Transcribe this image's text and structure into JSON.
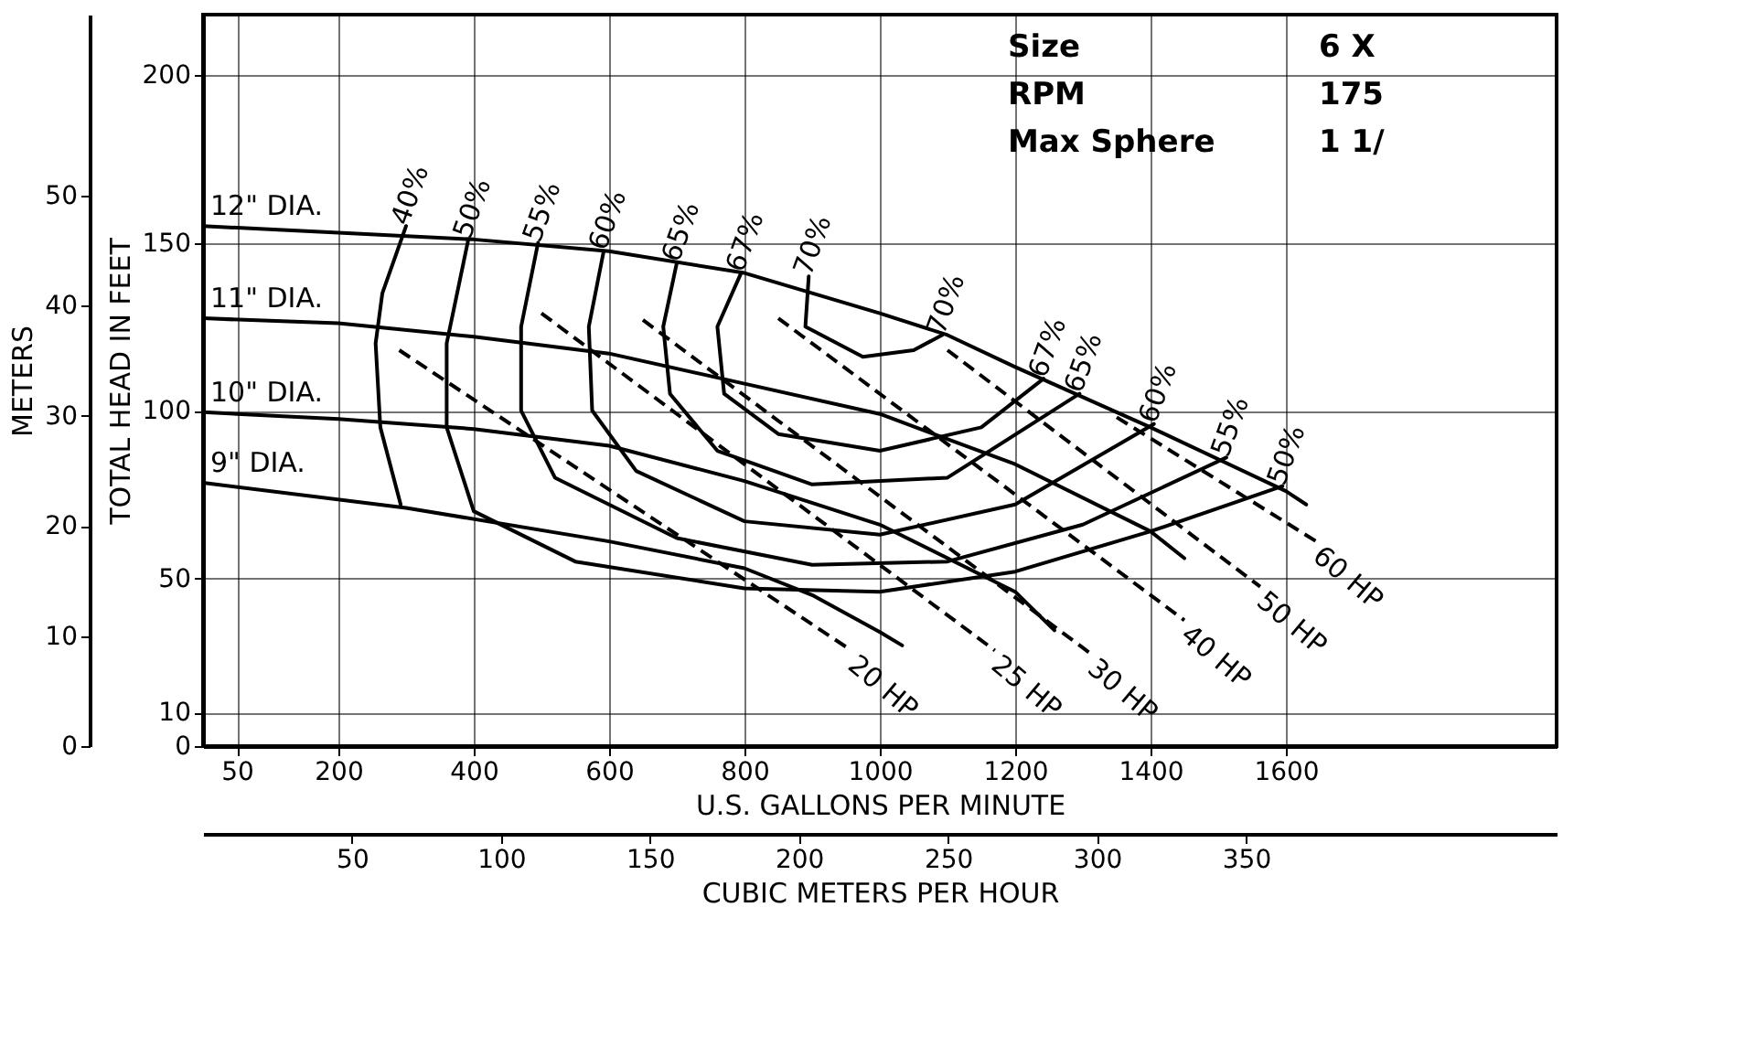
{
  "chart_data": {
    "type": "line",
    "xlabel": "U.S. GALLONS PER MINUTE",
    "ylabel": "TOTAL HEAD IN FEET",
    "y2label": "METERS",
    "x2label": "CUBIC METERS PER HOUR",
    "xlim": [
      0,
      2000
    ],
    "ylim": [
      0,
      218
    ],
    "xticks": [
      50,
      200,
      400,
      600,
      800,
      1000,
      1200,
      1400,
      1600
    ],
    "yticks": [
      0,
      10,
      50,
      100,
      150,
      200
    ],
    "x2lim": [
      0,
      454.2
    ],
    "x2ticks": [
      50,
      100,
      150,
      200,
      250,
      300,
      350
    ],
    "y2lim": [
      0,
      66.45
    ],
    "y2ticks": [
      0,
      10,
      20,
      30,
      40,
      50
    ],
    "grid": true,
    "series": [
      {
        "name": "12\" DIA.",
        "color": "#000000",
        "line_style": "solid",
        "x": [
          0,
          200,
          400,
          600,
          800,
          1000,
          1100,
          1200,
          1400,
          1600,
          1630
        ],
        "values": [
          155,
          153,
          151,
          147.5,
          141,
          129,
          122.5,
          113,
          95,
          76,
          72
        ]
      },
      {
        "name": "11\" DIA.",
        "color": "#000000",
        "line_style": "solid",
        "x": [
          0,
          200,
          400,
          600,
          800,
          1000,
          1200,
          1400,
          1450
        ],
        "values": [
          127.5,
          126,
          122,
          117,
          108,
          99,
          84,
          64,
          56
        ]
      },
      {
        "name": "10\" DIA.",
        "color": "#000000",
        "line_style": "solid",
        "x": [
          0,
          200,
          400,
          600,
          800,
          1000,
          1200,
          1258
        ],
        "values": [
          99.5,
          97.5,
          94.5,
          89.5,
          79,
          66,
          46,
          34.5
        ]
      },
      {
        "name": "9\" DIA.",
        "color": "#000000",
        "line_style": "solid",
        "x": [
          0,
          300,
          600,
          800,
          900,
          1000,
          1033
        ],
        "values": [
          78.5,
          71,
          61,
          53,
          45,
          34,
          30
        ]
      },
      {
        "name": "40%",
        "color": "#000000",
        "line_style": "solid",
        "x": [
          300,
          265,
          255,
          262,
          292
        ],
        "values": [
          155,
          135,
          120,
          95,
          72
        ]
      },
      {
        "name": "50%",
        "color": "#000000",
        "line_style": "solid",
        "x": [
          392,
          360,
          360,
          400,
          550,
          800,
          1000,
          1200,
          1400,
          1595
        ],
        "values": [
          151,
          120,
          95,
          70,
          55,
          47,
          46,
          52,
          64,
          77.5
        ]
      },
      {
        "name": "55%",
        "color": "#000000",
        "line_style": "solid",
        "x": [
          495,
          470,
          470,
          520,
          700,
          900,
          1100,
          1300,
          1512
        ],
        "values": [
          150,
          125,
          100,
          80,
          62,
          54,
          55,
          66,
          86
        ]
      },
      {
        "name": "60%",
        "color": "#000000",
        "line_style": "solid",
        "x": [
          592,
          570,
          575,
          640,
          800,
          1000,
          1200,
          1405
        ],
        "values": [
          147.5,
          125,
          100,
          82,
          67,
          63,
          72,
          96
        ]
      },
      {
        "name": "65%",
        "color": "#000000",
        "line_style": "solid",
        "x": [
          700,
          680,
          690,
          760,
          900,
          1100,
          1295
        ],
        "values": [
          144,
          125,
          105,
          88,
          78,
          80,
          105
        ]
      },
      {
        "name": "67%",
        "color": "#000000",
        "line_style": "solid",
        "x": [
          795,
          760,
          770,
          850,
          1000,
          1150,
          1242
        ],
        "values": [
          141,
          125,
          105,
          93,
          88,
          95,
          109.5
        ]
      },
      {
        "name": "70%",
        "color": "#000000",
        "line_style": "solid",
        "x": [
          895,
          890,
          975,
          1050,
          1092
        ],
        "values": [
          140,
          125,
          116,
          118,
          122.5
        ]
      },
      {
        "name": "20 HP",
        "color": "#000000",
        "line_style": "dashed",
        "x": [
          290,
          958
        ],
        "values": [
          118,
          28.5
        ]
      },
      {
        "name": "25 HP",
        "color": "#000000",
        "line_style": "dashed",
        "x": [
          500,
          1170
        ],
        "values": [
          129,
          28.5
        ]
      },
      {
        "name": "30 HP",
        "color": "#000000",
        "line_style": "dashed",
        "x": [
          650,
          1312
        ],
        "values": [
          127,
          27.5
        ]
      },
      {
        "name": "40 HP",
        "color": "#000000",
        "line_style": "dashed",
        "x": [
          850,
          1450
        ],
        "values": [
          127.5,
          37.5
        ]
      },
      {
        "name": "50 HP",
        "color": "#000000",
        "line_style": "dashed",
        "x": [
          1100,
          1562
        ],
        "values": [
          118,
          47.5
        ]
      },
      {
        "name": "60 HP",
        "color": "#000000",
        "line_style": "dashed",
        "x": [
          1350,
          1645
        ],
        "values": [
          98,
          61
        ]
      }
    ],
    "annotations": [
      "Size",
      "6 X",
      "RPM",
      "175",
      "Max Sphere",
      "1 1/"
    ]
  }
}
